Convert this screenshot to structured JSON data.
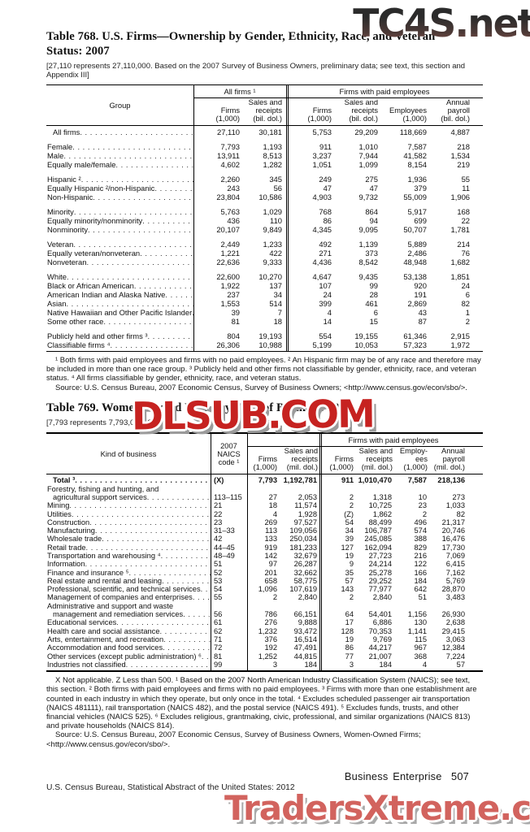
{
  "watermarks": {
    "top": "TC4S.net",
    "middle": "DLSUB.COM",
    "bottom": "TradersXtreme.com"
  },
  "table768": {
    "title": "Table 768. U.S. Firms—Ownership by Gender, Ethnicity, Race, and Veteran Status: 2007",
    "headnote": "[27,110 represents 27,110,000. Based on the 2007 Survey of Business Owners, preliminary data; see text, this section and Appendix III]",
    "group_header": "Group",
    "col_groups": [
      "All firms ¹",
      "Firms with paid employees"
    ],
    "sub_headers": [
      "Firms\n(1,000)",
      "Sales and\nreceipts\n(bil. dol.)",
      "Firms\n(1,000)",
      "Sales and\nreceipts\n(bil. dol.)",
      "Employees\n(1,000)",
      "Annual\npayroll\n(bil. dol.)"
    ],
    "groups": [
      {
        "rows": [
          {
            "label": "All firms",
            "indent": 1,
            "values": [
              "27,110",
              "30,181",
              "5,753",
              "29,209",
              "118,669",
              "4,887"
            ]
          }
        ]
      },
      {
        "rows": [
          {
            "label": "Female",
            "values": [
              "7,793",
              "1,193",
              "911",
              "1,010",
              "7,587",
              "218"
            ]
          },
          {
            "label": "Male",
            "values": [
              "13,911",
              "8,513",
              "3,237",
              "7,944",
              "41,582",
              "1,534"
            ]
          },
          {
            "label": "Equally male/female",
            "values": [
              "4,602",
              "1,282",
              "1,051",
              "1,099",
              "8,154",
              "219"
            ]
          }
        ]
      },
      {
        "rows": [
          {
            "label": "Hispanic ²",
            "values": [
              "2,260",
              "345",
              "249",
              "275",
              "1,936",
              "55"
            ]
          },
          {
            "label": "Equally Hispanic ²/non-Hispanic",
            "values": [
              "243",
              "56",
              "47",
              "47",
              "379",
              "11"
            ]
          },
          {
            "label": "Non-Hispanic",
            "values": [
              "23,804",
              "10,586",
              "4,903",
              "9,732",
              "55,009",
              "1,906"
            ]
          }
        ]
      },
      {
        "rows": [
          {
            "label": "Minority",
            "values": [
              "5,763",
              "1,029",
              "768",
              "864",
              "5,917",
              "168"
            ]
          },
          {
            "label": "Equally minority/nonminority",
            "values": [
              "436",
              "110",
              "86",
              "94",
              "699",
              "22"
            ]
          },
          {
            "label": "Nonminority",
            "values": [
              "20,107",
              "9,849",
              "4,345",
              "9,095",
              "50,707",
              "1,781"
            ]
          }
        ]
      },
      {
        "rows": [
          {
            "label": "Veteran",
            "values": [
              "2,449",
              "1,233",
              "492",
              "1,139",
              "5,889",
              "214"
            ]
          },
          {
            "label": "Equally veteran/nonveteran",
            "values": [
              "1,221",
              "422",
              "271",
              "373",
              "2,486",
              "76"
            ]
          },
          {
            "label": "Nonveteran",
            "values": [
              "22,636",
              "9,333",
              "4,436",
              "8,542",
              "48,948",
              "1,682"
            ]
          }
        ]
      },
      {
        "rows": [
          {
            "label": "White",
            "values": [
              "22,600",
              "10,270",
              "4,647",
              "9,435",
              "53,138",
              "1,851"
            ]
          },
          {
            "label": "Black or African American",
            "values": [
              "1,922",
              "137",
              "107",
              "99",
              "920",
              "24"
            ]
          },
          {
            "label": "American Indian and Alaska Native",
            "values": [
              "237",
              "34",
              "24",
              "28",
              "191",
              "6"
            ]
          },
          {
            "label": "Asian",
            "values": [
              "1,553",
              "514",
              "399",
              "461",
              "2,869",
              "82"
            ]
          },
          {
            "label": "Native Hawaiian and Other Pacific Islander",
            "values": [
              "39",
              "7",
              "4",
              "6",
              "43",
              "1"
            ]
          },
          {
            "label": "Some other race",
            "values": [
              "81",
              "18",
              "14",
              "15",
              "87",
              "2"
            ]
          }
        ]
      },
      {
        "rows": [
          {
            "label": "Publicly held and other firms ³",
            "values": [
              "804",
              "19,193",
              "554",
              "19,155",
              "61,346",
              "2,915"
            ]
          },
          {
            "label": "Classifiable firms ⁴",
            "values": [
              "26,306",
              "10,988",
              "5,199",
              "10,053",
              "57,323",
              "1,972"
            ]
          }
        ]
      }
    ],
    "footnote": "¹ Both firms with paid employees and firms with no paid employees. ² An Hispanic firm may be of any race and therefore may be included in more than one race group. ³ Publicly held and other firms not classifiable by gender, ethnicity, race, and veteran status. ⁴ All firms classifiable by gender, ethnicity, race, and veteran status.",
    "source": "Source: U.S. Census Bureau, 2007 Economic Census, Survey of Business Owners; <http://www.census.gov/econ/sbo/>."
  },
  "table769": {
    "title": "Table 769. Women-Owned Firms by Kind of Business: 2007",
    "headnote_visible": "[7,793 represents 7,793,000. Se",
    "kind_header": "Kind of business",
    "naics_header": "2007\nNAICS\ncode ¹",
    "col_group_left": "",
    "col_group_right": "Firms with paid employees",
    "sub_headers": [
      "Firms\n(1,000)",
      "Sales and\nreceipts\n(mil. dol.)",
      "Firms\n(1,000)",
      "Sales and\nreceipts\n(mil. dol.)",
      "Employ-\nees\n(1,000)",
      "Annual\npayroll\n(mil. dol.)"
    ],
    "rows": [
      {
        "lines": [
          "Total ³"
        ],
        "bold": true,
        "indent": 1,
        "naics": "(X)",
        "values": [
          "7,793",
          "1,192,781",
          "911",
          "1,010,470",
          "7,587",
          "218,136"
        ]
      },
      {
        "lines": [
          "Forestry, fishing and hunting, and",
          "agricultural support services"
        ],
        "naics": "113–115",
        "values": [
          "27",
          "2,053",
          "2",
          "1,318",
          "10",
          "273"
        ]
      },
      {
        "lines": [
          "Mining"
        ],
        "naics": "21",
        "values": [
          "18",
          "11,574",
          "2",
          "10,725",
          "23",
          "1,033"
        ]
      },
      {
        "lines": [
          "Utilities"
        ],
        "naics": "22",
        "values": [
          "4",
          "1,928",
          "(Z)",
          "1,862",
          "2",
          "82"
        ]
      },
      {
        "lines": [
          "Construction"
        ],
        "naics": "23",
        "values": [
          "269",
          "97,527",
          "54",
          "88,499",
          "496",
          "21,317"
        ]
      },
      {
        "lines": [
          "Manufacturing"
        ],
        "naics": "31–33",
        "values": [
          "113",
          "109,056",
          "34",
          "106,787",
          "574",
          "20,746"
        ]
      },
      {
        "lines": [
          "Wholesale trade"
        ],
        "naics": "42",
        "values": [
          "133",
          "250,034",
          "39",
          "245,085",
          "388",
          "16,476"
        ]
      },
      {
        "lines": [
          "Retail trade"
        ],
        "naics": "44–45",
        "values": [
          "919",
          "181,233",
          "127",
          "162,094",
          "829",
          "17,730"
        ]
      },
      {
        "lines": [
          "Transportation and warehousing ⁴"
        ],
        "naics": "48–49",
        "values": [
          "142",
          "32,679",
          "19",
          "27,723",
          "216",
          "7,069"
        ]
      },
      {
        "lines": [
          "Information"
        ],
        "naics": "51",
        "values": [
          "97",
          "26,287",
          "9",
          "24,214",
          "122",
          "6,415"
        ]
      },
      {
        "lines": [
          "Finance and insurance ⁵"
        ],
        "naics": "52",
        "values": [
          "201",
          "32,662",
          "35",
          "25,278",
          "166",
          "7,162"
        ]
      },
      {
        "lines": [
          "Real estate and rental and leasing"
        ],
        "naics": "53",
        "values": [
          "658",
          "58,775",
          "57",
          "29,252",
          "184",
          "5,769"
        ]
      },
      {
        "lines": [
          "Professional, scientific, and technical services"
        ],
        "naics": "54",
        "values": [
          "1,096",
          "107,619",
          "143",
          "77,977",
          "642",
          "28,870"
        ]
      },
      {
        "lines": [
          "Management of companies and enterprises"
        ],
        "naics": "55",
        "values": [
          "2",
          "2,840",
          "2",
          "2,840",
          "51",
          "3,483"
        ]
      },
      {
        "lines": [
          "Administrative and support and waste",
          "management and remediation services"
        ],
        "naics": "56",
        "values": [
          "786",
          "66,151",
          "64",
          "54,401",
          "1,156",
          "26,930"
        ]
      },
      {
        "lines": [
          "Educational services"
        ],
        "naics": "61",
        "values": [
          "276",
          "9,888",
          "17",
          "6,886",
          "130",
          "2,638"
        ]
      },
      {
        "lines": [
          "Health care and social assistance"
        ],
        "naics": "62",
        "values": [
          "1,232",
          "93,472",
          "128",
          "70,353",
          "1,141",
          "29,415"
        ]
      },
      {
        "lines": [
          "Arts, entertainment, and recreation"
        ],
        "naics": "71",
        "values": [
          "376",
          "16,514",
          "19",
          "9,769",
          "115",
          "3,063"
        ]
      },
      {
        "lines": [
          "Accommodation and food services"
        ],
        "naics": "72",
        "values": [
          "192",
          "47,491",
          "86",
          "44,217",
          "967",
          "12,384"
        ]
      },
      {
        "lines": [
          "Other services (except public administration) ⁶"
        ],
        "naics": "81",
        "values": [
          "1,252",
          "44,815",
          "77",
          "21,007",
          "368",
          "7,224"
        ]
      },
      {
        "lines": [
          "Industries not classified"
        ],
        "naics": "99",
        "values": [
          "3",
          "184",
          "3",
          "184",
          "4",
          "57"
        ]
      }
    ],
    "footnote": "X Not applicable. Z Less than 500. ¹ Based on the 2007 North American Industry Classification System (NAICS); see text, this section. ² Both firms with paid employees and firms with no paid employees. ³ Firms with more than one establishment are counted in each industry in which they operate, but only once in the total. ⁴ Excludes scheduled passenger air transportation (NAICS 481111), rail transportation (NAICS 482), and the postal service (NAICS 491). ⁵ Excludes funds, trusts, and other financial vehicles (NAICS 525). ⁶ Excludes religious, grantmaking, civic, professional, and similar organizations (NAICS 813) and private households (NAICS 814).",
    "source": "Source: U.S. Census Bureau, 2007 Economic Census, Survey of Business Owners, Women-Owned Firms; <http://www.census.gov/econ/sbo/>."
  },
  "footer": {
    "section": "Business Enterprise",
    "page_number": "507",
    "credit": "U.S. Census Bureau, Statistical Abstract of the United States: 2012"
  },
  "colors": {
    "watermark_red": "#c62220",
    "watermark_salmon": "#d2635e",
    "text": "#111111"
  }
}
